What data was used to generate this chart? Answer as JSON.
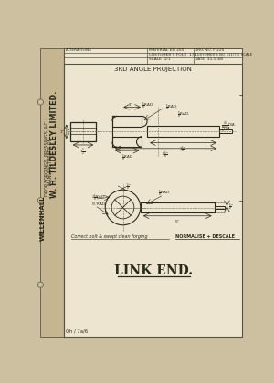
{
  "bg_color": "#ccc0a0",
  "paper_color": "#ede5d0",
  "border_color": "#555544",
  "line_color": "#2a2a1a",
  "dim_color": "#2a2a1a",
  "cl_color": "#666655",
  "title": "LINK END.",
  "subtitle": "3RD ANGLE PROJECTION",
  "company_line1": "W. H. TILDESLEY LIMITED.",
  "company_line2": "MANUFACTURERS OF",
  "company_line3": "DROP FORGINGS, PRESSINGS, &C.",
  "company_line4": "WILLENHALL",
  "note_text": "Correct bolt & swept clean forging",
  "normalise_text": "NORMALISE + DESCALE",
  "alterations_text": "ALTERATIONS",
  "material_text": "MATERIAL EN 205",
  "drg_text": "DRG NO. F 225",
  "cust_fold_text": "CUSTOMER'S FOLD  173",
  "cust_no_text": "CUSTOMER'S NO. (11/75) SCALE",
  "scale_text": "SCALE  1/1",
  "date_text": "DATE  31-5-68",
  "ref_text": "Qh / 7a/6"
}
